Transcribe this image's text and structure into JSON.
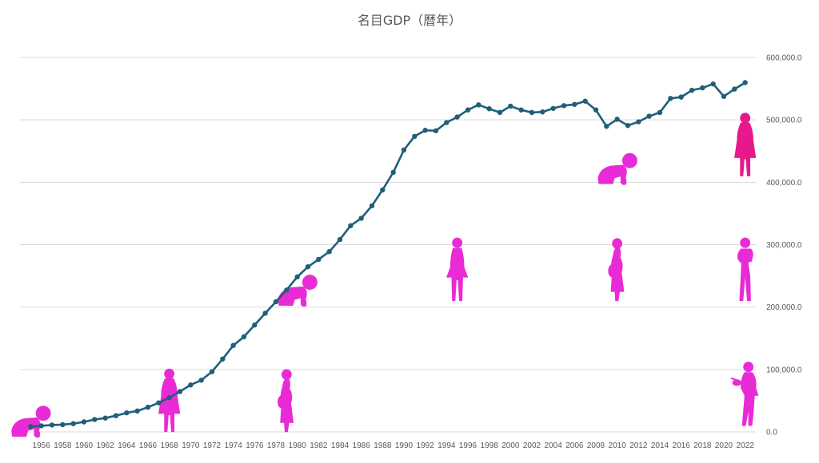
{
  "chart_data": {
    "type": "line",
    "title": "名目GDP（暦年）",
    "xlabel": "",
    "ylabel": "",
    "ylim": [
      0,
      600000
    ],
    "yticks": [
      "0.0",
      "100,000.0",
      "200,000.0",
      "300,000.0",
      "400,000.0",
      "500,000.0",
      "600,000.0"
    ],
    "xticks": [
      "1956",
      "1958",
      "1960",
      "1962",
      "1964",
      "1966",
      "1968",
      "1970",
      "1972",
      "1974",
      "1976",
      "1978",
      "1980",
      "1982",
      "1984",
      "1986",
      "1988",
      "1990",
      "1992",
      "1994",
      "1996",
      "1998",
      "2000",
      "2002",
      "2004",
      "2006",
      "2008",
      "2010",
      "2012",
      "2014",
      "2016",
      "2018",
      "2020",
      "2022"
    ],
    "grid": true,
    "series": [
      {
        "color": "#1f5f7a",
        "x": [
          1955,
          1956,
          1957,
          1958,
          1959,
          1960,
          1961,
          1962,
          1963,
          1964,
          1965,
          1966,
          1967,
          1968,
          1969,
          1970,
          1971,
          1972,
          1973,
          1974,
          1975,
          1976,
          1977,
          1978,
          1979,
          1980,
          1981,
          1982,
          1983,
          1984,
          1985,
          1986,
          1987,
          1988,
          1989,
          1990,
          1991,
          1992,
          1993,
          1994,
          1995,
          1996,
          1997,
          1998,
          1999,
          2000,
          2001,
          2002,
          2003,
          2004,
          2005,
          2006,
          2007,
          2008,
          2009,
          2010,
          2011,
          2012,
          2013,
          2014,
          2015,
          2016,
          2017,
          2018,
          2019,
          2020,
          2021,
          2022
        ],
        "values": [
          8600,
          9700,
          11000,
          11600,
          13200,
          16000,
          19800,
          22100,
          26000,
          30500,
          33500,
          39500,
          46500,
          54700,
          64600,
          75200,
          82800,
          96500,
          116700,
          138500,
          152400,
          171300,
          190100,
          208600,
          227300,
          248400,
          264600,
          276400,
          288800,
          308200,
          330400,
          342300,
          362300,
          387700,
          415900,
          451700,
          473600,
          483300,
          482600,
          495700,
          504600,
          515900,
          524100,
          517800,
          511900,
          522000,
          515900,
          511900,
          512700,
          518400,
          522800,
          524800,
          530000,
          516000,
          489600,
          501000,
          491000,
          496900,
          505900,
          511800,
          534400,
          536600,
          547400,
          551300,
          557600,
          537600,
          549400,
          559700
        ]
      }
    ],
    "annotations": [
      {
        "icon": "crawling-baby-icon",
        "x": 1955,
        "y": 15000
      },
      {
        "icon": "young-woman-icon",
        "x": 1968,
        "y": 50000
      },
      {
        "icon": "pregnant-woman-icon",
        "x": 1979,
        "y": 50000
      },
      {
        "icon": "crawling-baby-icon",
        "x": 1980,
        "y": 225000
      },
      {
        "icon": "girl-icon",
        "x": 1995,
        "y": 260000
      },
      {
        "icon": "pregnant-woman-icon",
        "x": 2010,
        "y": 260000
      },
      {
        "icon": "crawling-baby-icon",
        "x": 2010,
        "y": 420000
      },
      {
        "icon": "woman-holding-child-icon",
        "x": 2022,
        "y": 260000
      },
      {
        "icon": "young-woman-icon",
        "x": 2022,
        "y": 460000
      },
      {
        "icon": "woman-watering-can-icon",
        "x": 2022,
        "y": 60000
      }
    ],
    "colors": {
      "line": "#1f5f7a",
      "icon_magenta": "#e82bd6",
      "icon_pink": "#e8188c",
      "grid": "#d9d9d9"
    }
  }
}
